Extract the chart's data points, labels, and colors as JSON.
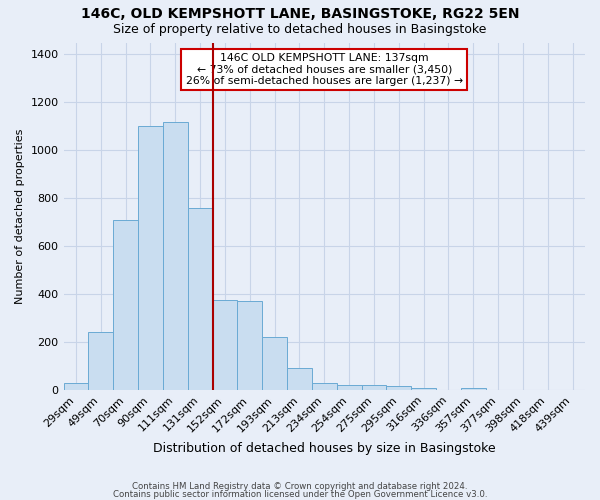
{
  "title1": "146C, OLD KEMPSHOTT LANE, BASINGSTOKE, RG22 5EN",
  "title2": "Size of property relative to detached houses in Basingstoke",
  "xlabel": "Distribution of detached houses by size in Basingstoke",
  "ylabel": "Number of detached properties",
  "categories": [
    "29sqm",
    "49sqm",
    "70sqm",
    "90sqm",
    "111sqm",
    "131sqm",
    "152sqm",
    "172sqm",
    "193sqm",
    "213sqm",
    "234sqm",
    "254sqm",
    "275sqm",
    "295sqm",
    "316sqm",
    "336sqm",
    "357sqm",
    "377sqm",
    "398sqm",
    "418sqm",
    "439sqm"
  ],
  "bar_heights": [
    28,
    240,
    710,
    1100,
    1120,
    760,
    375,
    370,
    220,
    90,
    30,
    20,
    20,
    15,
    10,
    0,
    10,
    0,
    0,
    0,
    0
  ],
  "bar_color": "#c9ddf0",
  "bar_edge_color": "#6aaad4",
  "grid_color": "#c8d4e8",
  "background_color": "#e8eef8",
  "vline_x": 5.5,
  "vline_color": "#aa0000",
  "annotation_text": "146C OLD KEMPSHOTT LANE: 137sqm\n← 73% of detached houses are smaller (3,450)\n26% of semi-detached houses are larger (1,237) →",
  "annotation_box_color": "#ffffff",
  "annotation_box_edge": "#cc0000",
  "ylim": [
    0,
    1450
  ],
  "yticks": [
    0,
    200,
    400,
    600,
    800,
    1000,
    1200,
    1400
  ],
  "footnote1": "Contains HM Land Registry data © Crown copyright and database right 2024.",
  "footnote2": "Contains public sector information licensed under the Open Government Licence v3.0."
}
